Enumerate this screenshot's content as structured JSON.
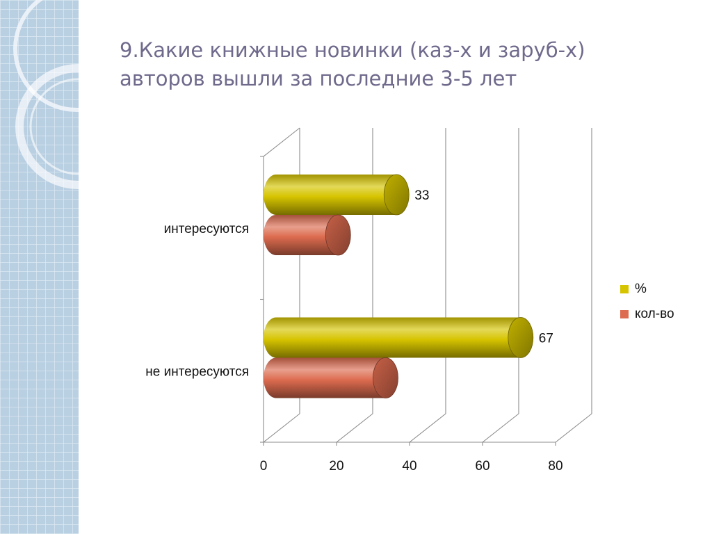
{
  "slide": {
    "title_line1": "9.Какие книжные новинки (каз-х и заруб-х)",
    "title_line2": "авторов вышли за последние 3-5 лет"
  },
  "chart_data": {
    "type": "bar",
    "orientation": "horizontal",
    "style": "3d-cylinder",
    "categories": [
      "интересуются",
      "не интересуются"
    ],
    "series": [
      {
        "name": "%",
        "values": [
          33,
          67
        ],
        "color": "#d6c400",
        "data_labels": [
          "33",
          "67"
        ]
      },
      {
        "name": "кол-во",
        "values": [
          17,
          30
        ],
        "color": "#dc6b4f",
        "data_labels": null
      }
    ],
    "xlim": [
      0,
      80
    ],
    "x_ticks": [
      "0",
      "20",
      "40",
      "60",
      "80"
    ],
    "grid": true,
    "legend_position": "right",
    "title": "",
    "xlabel": "",
    "ylabel": ""
  },
  "colors": {
    "title": "#6f6a8c",
    "sidebar": "#b7cde0",
    "gridline": "#8c8c8c"
  }
}
